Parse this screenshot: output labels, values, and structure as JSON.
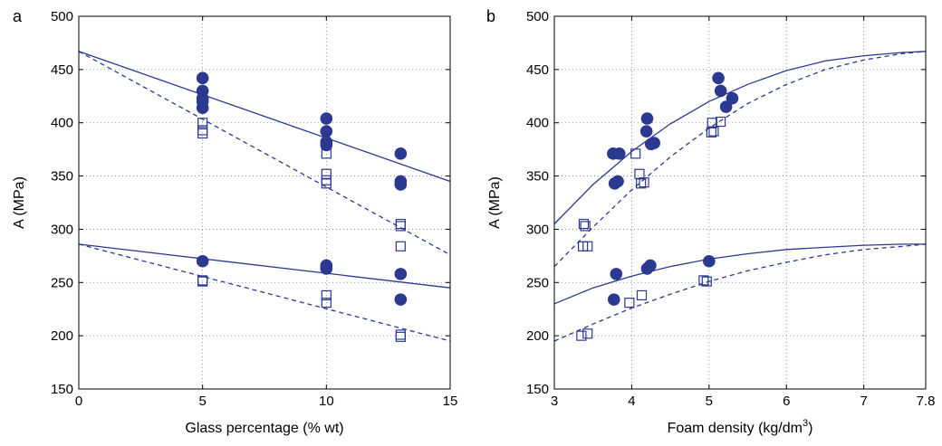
{
  "colors": {
    "series": "#2b3990",
    "grid": "#7f7f7f",
    "axis": "#000000"
  },
  "chart_data": [
    {
      "type": "scatter",
      "panel_label": "a",
      "xlabel": "Glass percentage (% wt)",
      "ylabel": "A (MPa)",
      "xlim": [
        0,
        15
      ],
      "ylim": [
        150,
        500
      ],
      "xticks": [
        0,
        5,
        10,
        15
      ],
      "yticks": [
        150,
        200,
        250,
        300,
        350,
        400,
        450,
        500
      ],
      "grid": "dotted",
      "series": [
        {
          "marker": "filled-circle",
          "points": [
            [
              5,
              442
            ],
            [
              5,
              430
            ],
            [
              5,
              423
            ],
            [
              5,
              420
            ],
            [
              5,
              414
            ],
            [
              10,
              404
            ],
            [
              10,
              392
            ],
            [
              10,
              382
            ],
            [
              10,
              379
            ],
            [
              13,
              371
            ],
            [
              13,
              345
            ],
            [
              13,
              342
            ],
            [
              5,
              270
            ],
            [
              10,
              266
            ],
            [
              10,
              263
            ],
            [
              13,
              258
            ],
            [
              13,
              234
            ]
          ]
        },
        {
          "marker": "open-square",
          "points": [
            [
              5,
              400
            ],
            [
              5,
              393
            ],
            [
              5,
              390
            ],
            [
              10,
              371
            ],
            [
              10,
              352
            ],
            [
              10,
              346
            ],
            [
              10,
              343
            ],
            [
              13,
              305
            ],
            [
              13,
              303
            ],
            [
              13,
              284
            ],
            [
              5,
              252
            ],
            [
              5,
              251
            ],
            [
              10,
              238
            ],
            [
              10,
              231
            ],
            [
              13,
              201
            ],
            [
              13,
              199
            ]
          ]
        }
      ],
      "fits": [
        {
          "style": "solid",
          "points": [
            [
              0,
              467
            ],
            [
              15,
              345
            ]
          ]
        },
        {
          "style": "dashed",
          "points": [
            [
              0,
              467
            ],
            [
              15,
              276
            ]
          ]
        },
        {
          "style": "solid",
          "points": [
            [
              0,
              286
            ],
            [
              15,
              245
            ]
          ]
        },
        {
          "style": "dashed",
          "points": [
            [
              0,
              286
            ],
            [
              15,
              195
            ]
          ]
        }
      ]
    },
    {
      "type": "scatter",
      "panel_label": "b",
      "xlabel": "Foam density (kg/dm",
      "xlabel_sup": "3",
      "xlabel_end": ")",
      "ylabel": "A (MPa)",
      "xlim": [
        3,
        7.8
      ],
      "ylim": [
        150,
        500
      ],
      "xticks": [
        3,
        4,
        5,
        6,
        7,
        7.8
      ],
      "yticks": [
        150,
        200,
        250,
        300,
        350,
        400,
        450,
        500
      ],
      "grid": "dotted",
      "series": [
        {
          "marker": "filled-circle",
          "points": [
            [
              3.76,
              371
            ],
            [
              3.84,
              371
            ],
            [
              3.78,
              343
            ],
            [
              3.82,
              345
            ],
            [
              4.2,
              404
            ],
            [
              4.19,
              392
            ],
            [
              4.25,
              380
            ],
            [
              4.29,
              381
            ],
            [
              5.12,
              442
            ],
            [
              5.15,
              430
            ],
            [
              5.22,
              415
            ],
            [
              5.3,
              423
            ],
            [
              3.8,
              258
            ],
            [
              3.77,
              234
            ],
            [
              4.2,
              263
            ],
            [
              4.24,
              266
            ],
            [
              5.0,
              270
            ]
          ]
        },
        {
          "marker": "open-square",
          "points": [
            [
              4.05,
              371
            ],
            [
              4.1,
              352
            ],
            [
              4.12,
              343
            ],
            [
              4.16,
              344
            ],
            [
              5.03,
              391
            ],
            [
              5.06,
              392
            ],
            [
              5.04,
              400
            ],
            [
              5.15,
              401
            ],
            [
              3.38,
              305
            ],
            [
              3.4,
              303
            ],
            [
              3.37,
              284
            ],
            [
              3.43,
              284
            ],
            [
              3.35,
              200
            ],
            [
              3.43,
              202
            ],
            [
              3.97,
              231
            ],
            [
              4.13,
              238
            ],
            [
              4.93,
              252
            ],
            [
              4.97,
              251
            ]
          ]
        }
      ],
      "fits": [
        {
          "style": "solid",
          "points": [
            [
              3,
              305
            ],
            [
              3.5,
              342
            ],
            [
              4,
              373
            ],
            [
              4.5,
              399
            ],
            [
              5,
              420
            ],
            [
              5.5,
              436
            ],
            [
              6,
              449
            ],
            [
              6.5,
              458
            ],
            [
              7,
              463
            ],
            [
              7.5,
              466
            ],
            [
              7.8,
              467
            ]
          ]
        },
        {
          "style": "dashed",
          "points": [
            [
              3,
              265
            ],
            [
              3.5,
              302
            ],
            [
              4,
              337
            ],
            [
              4.5,
              368
            ],
            [
              5,
              395
            ],
            [
              5.5,
              418
            ],
            [
              6,
              436
            ],
            [
              6.5,
              450
            ],
            [
              7,
              459
            ],
            [
              7.5,
              465
            ],
            [
              7.8,
              467
            ]
          ]
        },
        {
          "style": "solid",
          "points": [
            [
              3,
              230
            ],
            [
              3.5,
              245
            ],
            [
              4,
              256
            ],
            [
              4.5,
              265
            ],
            [
              5,
              272
            ],
            [
              5.5,
              277
            ],
            [
              6,
              281
            ],
            [
              6.5,
              283
            ],
            [
              7,
              285
            ],
            [
              7.5,
              286
            ],
            [
              7.8,
              286
            ]
          ]
        },
        {
          "style": "dashed",
          "points": [
            [
              3,
              195
            ],
            [
              3.5,
              211
            ],
            [
              4,
              226
            ],
            [
              4.5,
              239
            ],
            [
              5,
              251
            ],
            [
              5.5,
              261
            ],
            [
              6,
              269
            ],
            [
              6.5,
              276
            ],
            [
              7,
              281
            ],
            [
              7.5,
              284
            ],
            [
              7.8,
              286
            ]
          ]
        }
      ]
    }
  ]
}
